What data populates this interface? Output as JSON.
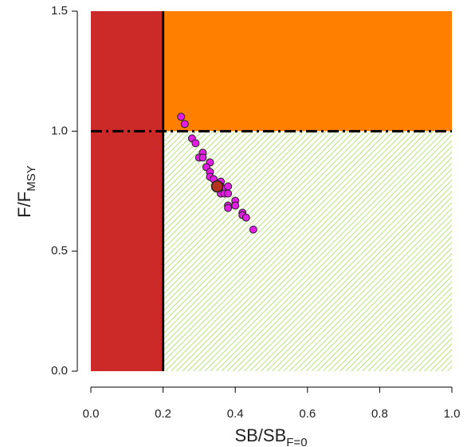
{
  "chart_data": {
    "type": "scatter",
    "x_label": {
      "main": "SB/SB",
      "sub": "F=0"
    },
    "y_label": {
      "main": "F/F",
      "sub": "MSY"
    },
    "xlim": [
      0,
      1.0
    ],
    "ylim": [
      0,
      1.5
    ],
    "xticks": [
      {
        "value": 0,
        "label": "0.0"
      },
      {
        "value": 0.2,
        "label": "0.2"
      },
      {
        "value": 0.4,
        "label": "0.4"
      },
      {
        "value": 0.6,
        "label": "0.6"
      },
      {
        "value": 0.8,
        "label": "0.8"
      },
      {
        "value": 1.0,
        "label": "1.0"
      }
    ],
    "yticks": [
      {
        "value": 0,
        "label": "0.0"
      },
      {
        "value": 0.5,
        "label": "0.5"
      },
      {
        "value": 1.0,
        "label": "1.0"
      },
      {
        "value": 1.5,
        "label": "1.5"
      }
    ],
    "reference_lines": {
      "x": 0.2,
      "y": 1.0
    },
    "zone_colors": {
      "overfished": "#cc2929",
      "overfishing": "#ff8000",
      "healthy": "#b8e27c"
    },
    "points": {
      "color": "#e31ee3",
      "x": [
        0.25,
        0.26,
        0.28,
        0.29,
        0.31,
        0.3,
        0.31,
        0.33,
        0.32,
        0.33,
        0.33,
        0.34,
        0.36,
        0.36,
        0.37,
        0.38,
        0.36,
        0.37,
        0.38,
        0.38,
        0.38,
        0.4,
        0.4,
        0.42,
        0.42,
        0.43,
        0.45
      ],
      "y": [
        1.06,
        1.03,
        0.97,
        0.95,
        0.91,
        0.89,
        0.89,
        0.87,
        0.85,
        0.83,
        0.81,
        0.8,
        0.79,
        0.77,
        0.76,
        0.77,
        0.74,
        0.74,
        0.74,
        0.69,
        0.68,
        0.71,
        0.69,
        0.66,
        0.65,
        0.64,
        0.59
      ]
    },
    "current": {
      "color": "#b5301f",
      "x": 0.35,
      "y": 0.77
    }
  }
}
